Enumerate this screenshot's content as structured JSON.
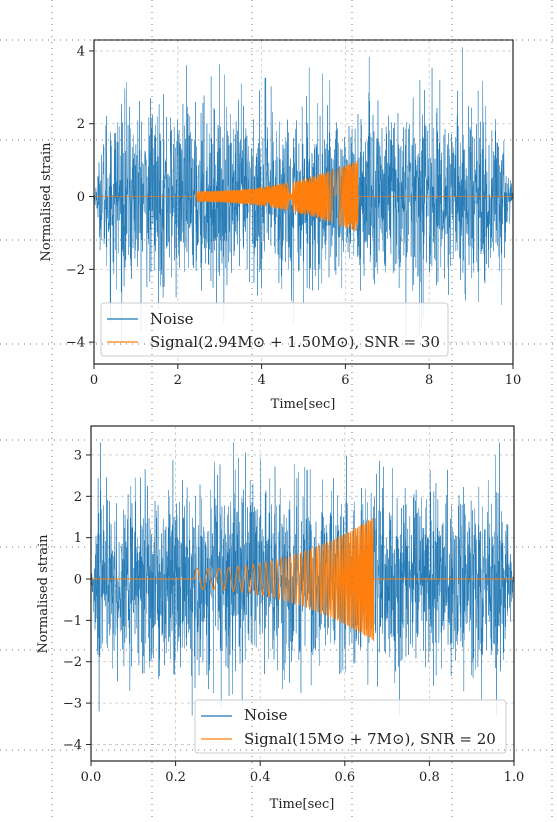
{
  "chart_data": [
    {
      "type": "line",
      "title": "",
      "xlabel": "Time[sec]",
      "ylabel": "Normalised strain",
      "xlim": [
        0,
        10
      ],
      "ylim": [
        -4.6,
        4.3
      ],
      "xticks": [
        "0",
        "2",
        "4",
        "6",
        "8",
        "10"
      ],
      "xtick_values": [
        0,
        2,
        4,
        6,
        8,
        10
      ],
      "yticks": [
        "4",
        "2",
        "0",
        "−2",
        "−4"
      ],
      "ytick_values": [
        4,
        2,
        0,
        -2,
        -4
      ],
      "grid": true,
      "legend_placement": "lower-left",
      "series": [
        {
          "name": "Noise",
          "color": "#1f77b4",
          "kind": "gaussian-noise",
          "x_range": [
            0,
            10
          ],
          "typical_amplitude": 2.2,
          "peak_amplitude": 4.1,
          "taper_end_sec": 0.3
        },
        {
          "name": "Signal(2.94M⊙ + 1.50M⊙), SNR = 30",
          "color": "#ff7f0e",
          "kind": "chirp",
          "start_time": 2.45,
          "end_time": 6.3,
          "amplitude_start": 0.15,
          "amplitude_end": 1.0,
          "freq_start_hz": 40,
          "freq_end_hz": 400
        }
      ]
    },
    {
      "type": "line",
      "title": "",
      "xlabel": "Time[sec]",
      "ylabel": "Normalised strain",
      "xlim": [
        0,
        1
      ],
      "ylim": [
        -4.4,
        3.7
      ],
      "xticks": [
        "0.0",
        "0.2",
        "0.4",
        "0.6",
        "0.8",
        "1.0"
      ],
      "xtick_values": [
        0,
        0.2,
        0.4,
        0.6,
        0.8,
        1.0
      ],
      "yticks": [
        "3",
        "2",
        "1",
        "0",
        "−1",
        "−2",
        "−3",
        "−4"
      ],
      "ytick_values": [
        3,
        2,
        1,
        0,
        -1,
        -2,
        -3,
        -4
      ],
      "grid": true,
      "legend_placement": "lower-right",
      "series": [
        {
          "name": "Noise",
          "color": "#1f77b4",
          "kind": "gaussian-noise",
          "x_range": [
            0,
            1
          ],
          "typical_amplitude": 2.0,
          "peak_amplitude": 3.3,
          "taper_end_sec": 0.015
        },
        {
          "name": "Signal(15M⊙ + 7M⊙), SNR = 20",
          "color": "#ff7f0e",
          "kind": "chirp",
          "start_time": 0.245,
          "end_time": 0.668,
          "amplitude_start": 0.25,
          "amplitude_end": 1.5,
          "freq_start_hz": 38,
          "freq_end_hz": 300
        }
      ]
    }
  ]
}
